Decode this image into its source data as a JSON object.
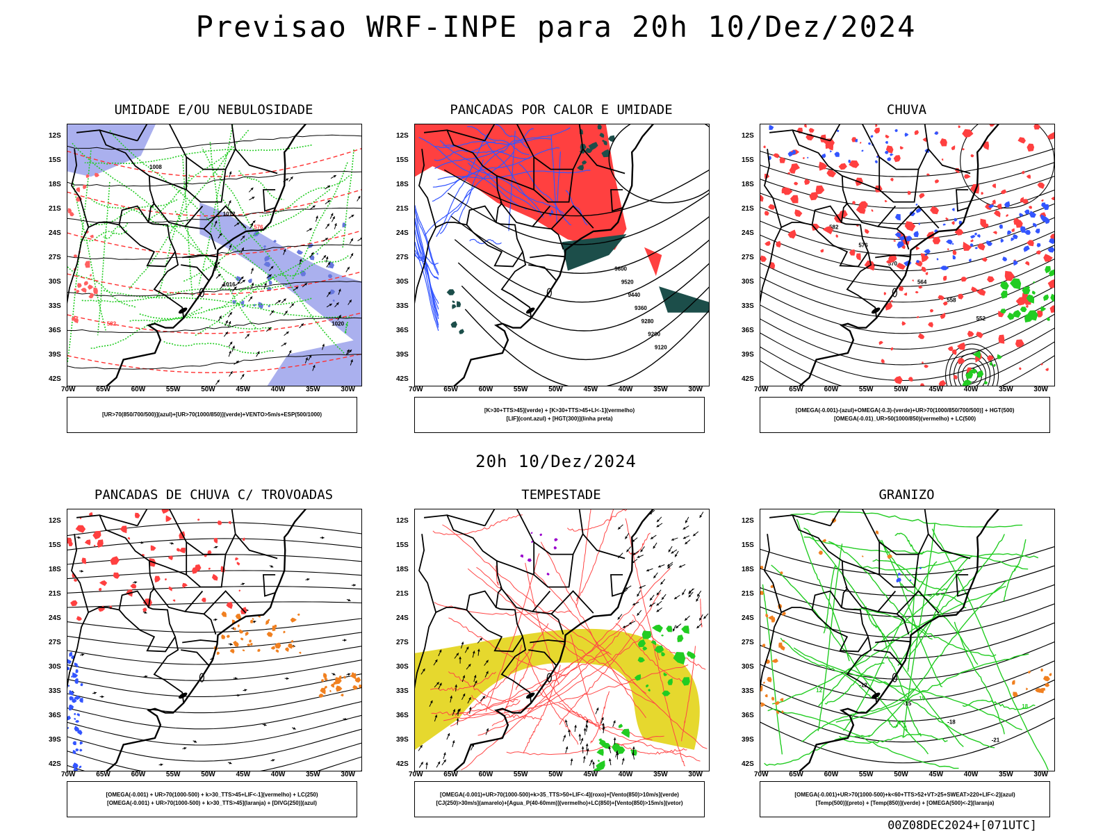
{
  "main_title": "Previsao WRF-INPE  para 20h 10/Dez/2024",
  "subtitle": "20h 10/Dez/2024",
  "footer": "00Z08DEC2024+[071UTC]",
  "axes": {
    "lat_labels": [
      "12S",
      "15S",
      "18S",
      "21S",
      "24S",
      "27S",
      "30S",
      "33S",
      "36S",
      "39S",
      "42S"
    ],
    "lon_labels": [
      "70W",
      "65W",
      "60W",
      "55W",
      "50W",
      "45W",
      "40W",
      "35W",
      "30W"
    ]
  },
  "colors": {
    "red": "#ff4040",
    "green": "#22cc22",
    "blue": "#3355ff",
    "lavender": "#aab0ee",
    "dark_teal": "#1c4e4a",
    "yellow": "#e6d82e",
    "orange": "#f08020",
    "purple": "#9900cc"
  },
  "panels": [
    {
      "title": "UMIDADE E/OU NEBULOSIDADE",
      "legend": [
        "[UR>70(850/700/500)](azul)+[UR>70(1000/850)](verde)+VENTO>5m/s+ESP(500/1000)"
      ],
      "contour_labels": [
        "1008",
        "1008",
        "1012",
        "1016",
        "1020",
        "570",
        "576",
        "582",
        "564",
        "558"
      ]
    },
    {
      "title": "PANCADAS POR CALOR E UMIDADE",
      "legend": [
        "[K>30+TTS>45](verde) + [K>30+TTS>45+LI<-1](vermelho)",
        "[LIF](cont.azul) + [HGT(300)](linha preta)"
      ],
      "contour_labels": [
        "9600",
        "9520",
        "9440",
        "9360",
        "9280",
        "9200",
        "9120"
      ]
    },
    {
      "title": "CHUVA",
      "legend": [
        "[OMEGA(-0.001)-(azul)+OMEGA(-0.3)-(verde)+UR>70(1000/850/700/500)] + HGT(500)",
        "[OMEGA(-0.01)_UR>50(1000/850)(vermelho) + LC(500)"
      ],
      "contour_labels": [
        "582",
        "576",
        "570",
        "564",
        "558",
        "552"
      ]
    },
    {
      "title": "PANCADAS DE CHUVA C/ TROVOADAS",
      "legend": [
        "[OMEGA(-0.001) + UR>70(1000-500) + k>30_TTS>45+LIF<-1](vermelho) + LC(250)",
        "[OMEGA(-0.001) + UR>70(1000-500) + k>30_TTS>45](laranja) + [DIVG(250)](azul)"
      ],
      "contour_labels": []
    },
    {
      "title": "TEMPESTADE",
      "legend": [
        "[OMEGA(-0.001)+UR>70(1000-500)+k>35_TTS>50+LIF<-4](roxo)+[Vento(850)>10m/s](verde)",
        "[CJ(250)>30m/s](amarelo)+[Agua_P(40-60mm)](vermelho)+LC(850)+[Vento(850)>15m/s](vetor)"
      ],
      "contour_labels": []
    },
    {
      "title": "GRANIZO",
      "legend": [
        "[OMEGA(-0.001)+UR>70(1000-500)+k<60+TTS>52+VT>25+SWEAT>220+LIF<-2](azul)",
        "[Temp(500)](preto) + [Temp(850)](verde) + [OMEGA(500)<-2](laranja)"
      ],
      "contour_labels": [
        "-12",
        "-15",
        "-18",
        "-21",
        "12",
        "15",
        "18"
      ]
    }
  ]
}
